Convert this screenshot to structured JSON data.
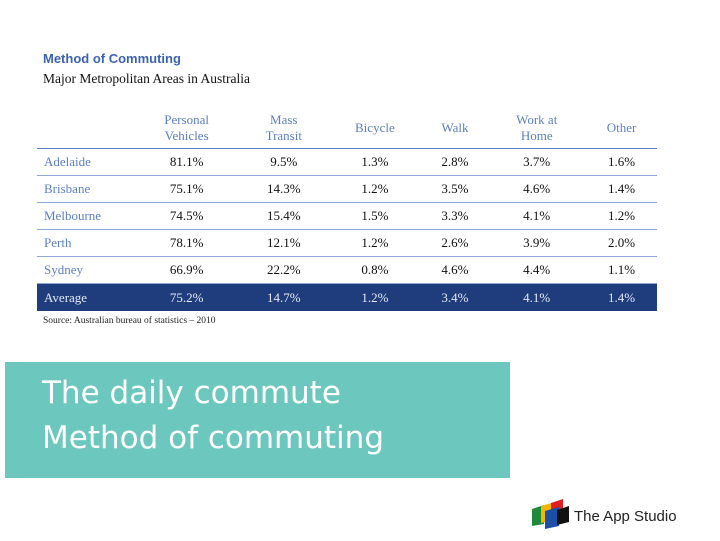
{
  "table": {
    "title": "Method of Commuting",
    "subtitle": "Major Metropolitan Areas in Australia",
    "columns": [
      [
        "Personal",
        "Vehicles"
      ],
      [
        "Mass",
        "Transit"
      ],
      [
        "Bicycle"
      ],
      [
        "Walk"
      ],
      [
        "Work at",
        "Home"
      ],
      [
        "Other"
      ]
    ],
    "rows": [
      {
        "city": "Adelaide",
        "values": [
          "81.1%",
          "9.5%",
          "1.3%",
          "2.8%",
          "3.7%",
          "1.6%"
        ]
      },
      {
        "city": "Brisbane",
        "values": [
          "75.1%",
          "14.3%",
          "1.2%",
          "3.5%",
          "4.6%",
          "1.4%"
        ]
      },
      {
        "city": "Melbourne",
        "values": [
          "74.5%",
          "15.4%",
          "1.5%",
          "3.3%",
          "4.1%",
          "1.2%"
        ]
      },
      {
        "city": "Perth",
        "values": [
          "78.1%",
          "12.1%",
          "1.2%",
          "2.6%",
          "3.9%",
          "2.0%"
        ]
      },
      {
        "city": "Sydney",
        "values": [
          "66.9%",
          "22.2%",
          "0.8%",
          "4.6%",
          "4.4%",
          "1.1%"
        ]
      }
    ],
    "average": {
      "label": "Average",
      "values": [
        "75.2%",
        "14.7%",
        "1.2%",
        "3.4%",
        "4.1%",
        "1.4%"
      ]
    },
    "source": "Source: Australian bureau of statistics – 2010"
  },
  "banner": {
    "line1": "The daily commute",
    "line2": "Method of commuting",
    "color": "#6cc8bf"
  },
  "logo": {
    "text": "The App Studio",
    "icon": "colorful-blocks-logo-icon"
  },
  "colors": {
    "title_blue": "#3b63b0",
    "header_blue": "#5b7fc4",
    "average_row": "#1f3c7d"
  }
}
